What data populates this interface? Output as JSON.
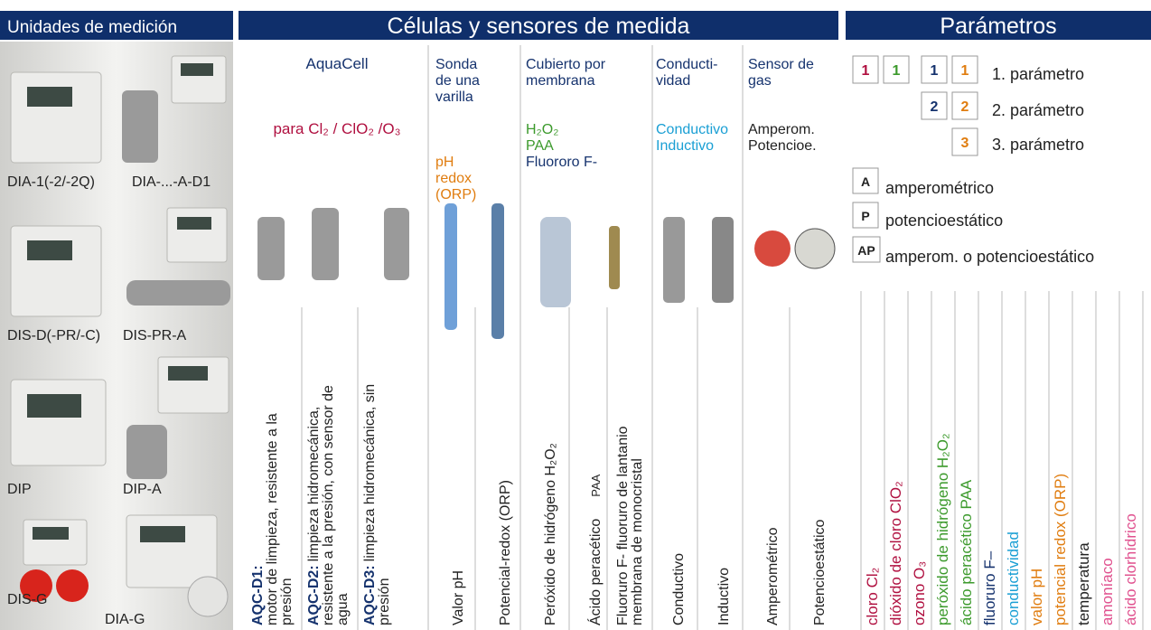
{
  "units": {
    "title": "Unidades de medición",
    "devices": [
      "DIA-1(-2/-2Q)",
      "DIA-...-A-D1",
      "DIS-D(-PR/-C)",
      "DIS-PR-A",
      "DIP",
      "DIP-A",
      "DIS-G",
      "DIA-G"
    ]
  },
  "sensors": {
    "title": "Células y sensores de medida",
    "aquacell": {
      "name": "AquaCell",
      "use": "para Cl₂ / ClO₂ /O₃"
    },
    "rod": {
      "name": [
        "Sonda",
        "de una",
        "varilla"
      ],
      "measures": [
        "pH",
        "redox",
        "(ORP)"
      ]
    },
    "membrane": {
      "name": [
        "Cubierto por",
        "membrana"
      ],
      "measures": [
        "H₂O₂",
        "PAA",
        "Fluororo F-"
      ]
    },
    "conductivity": {
      "name": [
        "Conducti-",
        "vidad"
      ],
      "measures": [
        "Conductivo",
        "Inductivo"
      ]
    },
    "gas": {
      "name": [
        "Sensor de",
        "gas"
      ],
      "measures": [
        "Amperom.",
        "Potencioe."
      ]
    },
    "cells": [
      {
        "code": "AQC-D1:",
        "lines": [
          "motor de limpieza, resistente a la",
          "presión"
        ]
      },
      {
        "code": "AQC-D2:",
        "lines": [
          "limpieza hidromecánica,",
          "resistente a la presión, con sensor de",
          "agua"
        ]
      },
      {
        "code": "AQC-D3:",
        "lines": [
          "limpieza hidromecánica, sin",
          "presión"
        ]
      },
      {
        "lines": [
          "Valor pH"
        ]
      },
      {
        "lines": [
          "Potencial-redox (ORP)"
        ]
      },
      {
        "lines": [
          "Peróxido de hidrógeno H₂O₂"
        ]
      },
      {
        "lines": [
          "Ácido peracético",
          "PAA"
        ]
      },
      {
        "lines": [
          "Fluoruro F- fluoruro de lantanio",
          "membrana de monocristal"
        ]
      },
      {
        "lines": [
          "Conductivo"
        ]
      },
      {
        "lines": [
          "Inductivo"
        ]
      },
      {
        "lines": [
          "Amperométrico"
        ]
      },
      {
        "lines": [
          "Potencioestático"
        ]
      }
    ]
  },
  "parameters": {
    "title": "Parámetros",
    "levels": [
      {
        "marks": [
          "1",
          "1",
          "1",
          "1"
        ],
        "label": "1. parámetro"
      },
      {
        "marks": [
          "2",
          "2"
        ],
        "label": "2. parámetro"
      },
      {
        "marks": [
          "3"
        ],
        "label": "3. parámetro"
      }
    ],
    "methods": [
      {
        "code": "A",
        "label": "amperométrico"
      },
      {
        "code": "P",
        "label": "potencioestático"
      },
      {
        "code": "AP",
        "label": "amperom. o potencioestático"
      }
    ],
    "list": [
      "cloro  Cl₂",
      "dióxido de cloro ClO₂",
      "ozono O₃",
      "peróxido de hidrógeno H₂O₂",
      "ácido peracético PAA",
      "fluoruro F–",
      "conductividad",
      "valor pH",
      "potencial redox  (ORP)",
      "temperatura",
      "amoníaco",
      "ácido clorhídrico"
    ]
  }
}
